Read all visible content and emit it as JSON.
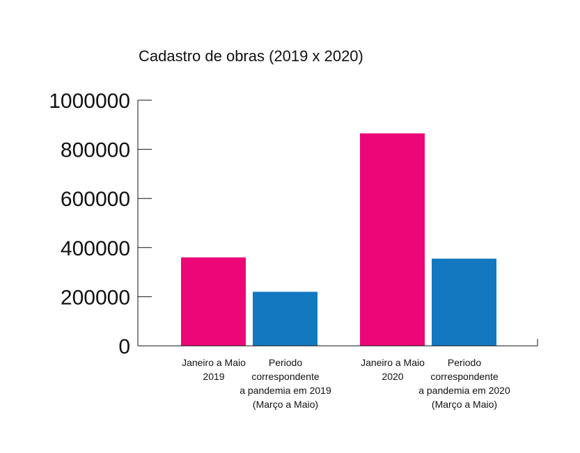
{
  "chart_data": {
    "type": "bar",
    "title": "Cadastro de obras (2019 x 2020)",
    "xlabel": "",
    "ylabel": "",
    "ylim": [
      0,
      1000000
    ],
    "yticks": [
      "0",
      "200000",
      "400000",
      "600000",
      "800000",
      "1000000"
    ],
    "grid": false,
    "legend": "none",
    "bars": [
      {
        "label_lines": [
          "Janeiro a Maio",
          "2019"
        ],
        "value": 360000,
        "color": "#ec0677"
      },
      {
        "label_lines": [
          "Periodo",
          "correspondente",
          "a pandemia em 2019",
          "(Março a Maio)"
        ],
        "value": 220000,
        "color": "#1378c0"
      },
      {
        "label_lines": [
          "Janeiro a Maio",
          "2020"
        ],
        "value": 865000,
        "color": "#ec0677"
      },
      {
        "label_lines": [
          "Periodo",
          "correspondente",
          "a pandemia em 2020",
          "(Março a Maio)"
        ],
        "value": 355000,
        "color": "#1378c0"
      }
    ]
  }
}
